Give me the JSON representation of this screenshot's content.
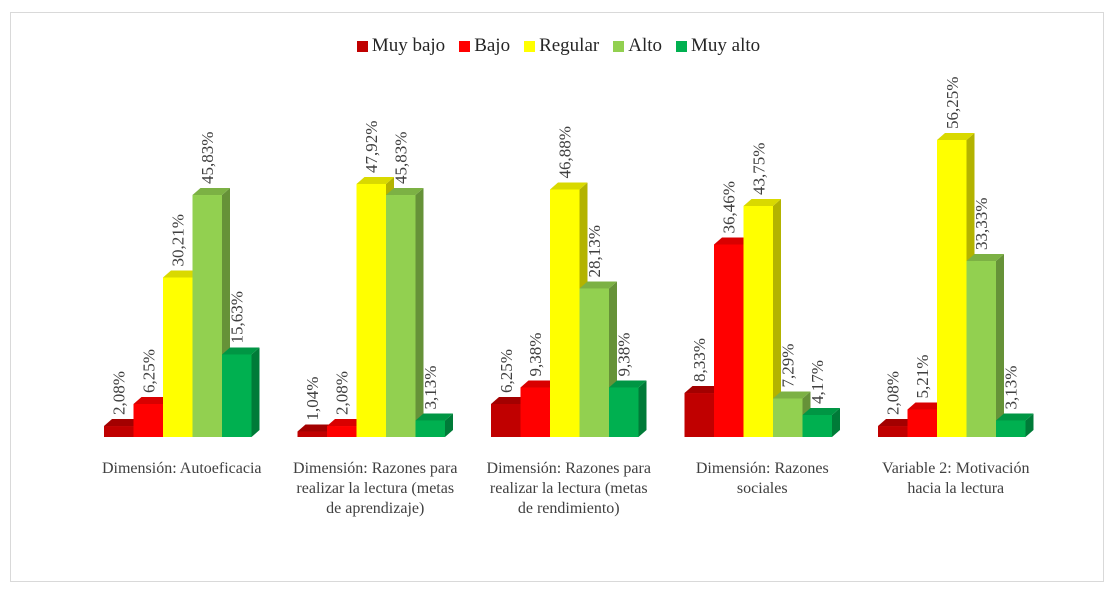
{
  "chart_data": {
    "type": "bar3d",
    "categories": [
      "Dimensión: Autoeficacia",
      "Dimensión: Razones para realizar la lectura (metas de aprendizaje)",
      "Dimensión: Razones para realizar la lectura (metas de rendimiento)",
      "Dimensión: Razones sociales",
      "Variable 2: Motivación hacia la lectura"
    ],
    "series": [
      {
        "name": "Muy bajo",
        "color": "#c00000",
        "values": [
          2.08,
          1.04,
          6.25,
          8.33,
          2.08
        ],
        "value_labels": [
          "2,08%",
          "1,04%",
          "6,25%",
          "8,33%",
          "2,08%"
        ]
      },
      {
        "name": "Bajo",
        "color": "#ff0000",
        "values": [
          6.25,
          2.08,
          9.38,
          36.46,
          5.21
        ],
        "value_labels": [
          "6,25%",
          "2,08%",
          "9,38%",
          "36,46%",
          "5,21%"
        ]
      },
      {
        "name": "Regular",
        "color": "#ffff00",
        "values": [
          30.21,
          47.92,
          46.88,
          43.75,
          56.25
        ],
        "value_labels": [
          "30,21%",
          "47,92%",
          "46,88%",
          "43,75%",
          "56,25%"
        ]
      },
      {
        "name": "Alto",
        "color": "#92d050",
        "values": [
          45.83,
          45.83,
          28.13,
          7.29,
          33.33
        ],
        "value_labels": [
          "45,83%",
          "45,83%",
          "28,13%",
          "7,29%",
          "33,33%"
        ]
      },
      {
        "name": "Muy alto",
        "color": "#00b050",
        "values": [
          15.63,
          3.13,
          9.38,
          4.17,
          3.13
        ],
        "value_labels": [
          "15,63%",
          "3,13%",
          "9,38%",
          "4,17%",
          "3,13%"
        ]
      }
    ],
    "legend": "top"
  }
}
